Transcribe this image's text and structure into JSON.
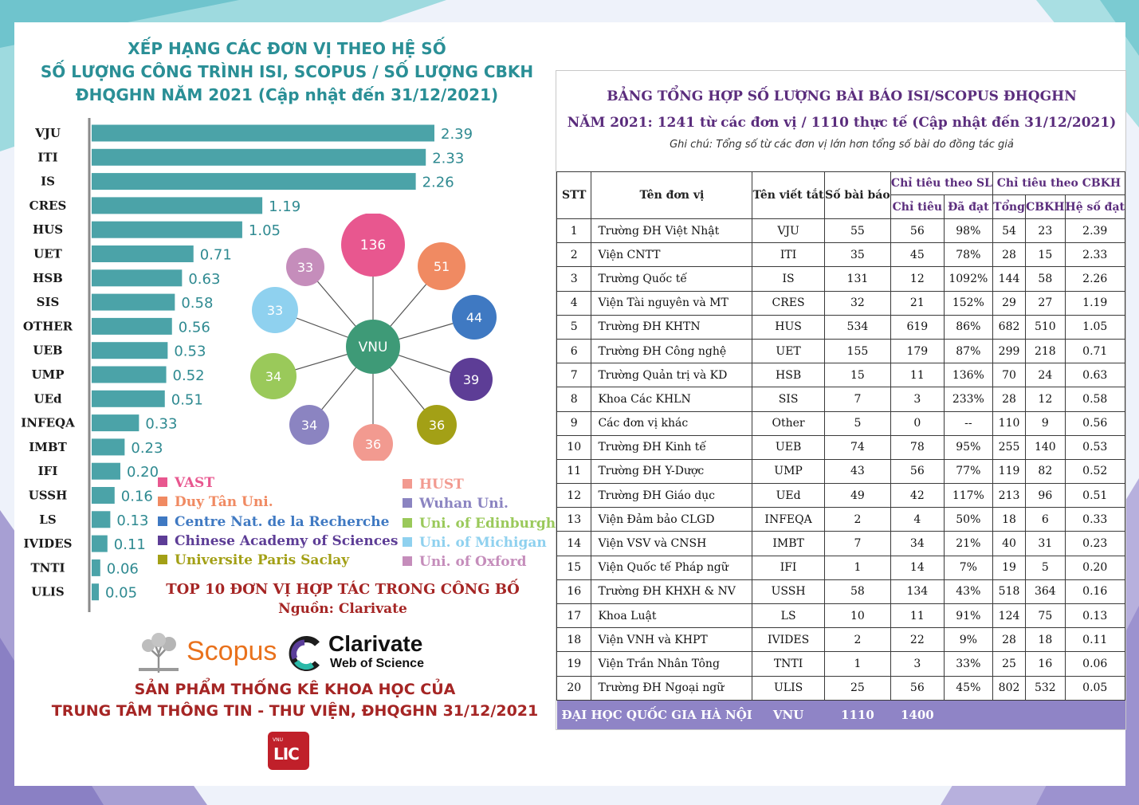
{
  "chart_title": [
    "XẾP HẠNG CÁC ĐƠN VỊ THEO HỆ SỐ",
    "SỐ LƯỢNG CÔNG TRÌNH ISI, SCOPUS / SỐ LƯỢNG CBKH",
    "ĐHQGHN NĂM 2021 (Cập nhật đến 31/12/2021)"
  ],
  "chart_data": [
    {
      "type": "bar",
      "orientation": "horizontal",
      "categories": [
        "VJU",
        "ITI",
        "IS",
        "CRES",
        "HUS",
        "UET",
        "HSB",
        "SIS",
        "OTHER",
        "UEB",
        "UMP",
        "UEd",
        "INFEQA",
        "IMBT",
        "IFI",
        "USSH",
        "LS",
        "IVIDES",
        "TNTI",
        "ULIS"
      ],
      "values": [
        2.39,
        2.33,
        2.26,
        1.19,
        1.05,
        0.71,
        0.63,
        0.58,
        0.56,
        0.53,
        0.52,
        0.51,
        0.33,
        0.23,
        0.2,
        0.16,
        0.13,
        0.11,
        0.06,
        0.05
      ],
      "value_labels": [
        "2.39",
        "2.33",
        "2.26",
        "1.19",
        "1.05",
        "0.71",
        "0.63",
        "0.58",
        "0.56",
        "0.53",
        "0.52",
        "0.51",
        "0.33",
        "0.23",
        "0.20",
        "0.16",
        "0.13",
        "0.11",
        "0.06",
        "0.05"
      ],
      "xlim": [
        0,
        2.4
      ],
      "grid": false,
      "bar_color": "#4ba3a8"
    },
    {
      "type": "bubble-network",
      "center": "VNU",
      "center_color": "#3e9a77",
      "nodes": [
        {
          "partner": "VAST",
          "value": 136,
          "color": "#e8578f"
        },
        {
          "partner": "Duy Tân Uni.",
          "value": 51,
          "color": "#f08a62"
        },
        {
          "partner": "Centre Nat. de la Recherche",
          "value": 44,
          "color": "#3f79c2"
        },
        {
          "partner": "Chinese Academy of Sciences",
          "value": 39,
          "color": "#5d3d96"
        },
        {
          "partner": "Universite Paris Saclay",
          "value": 36,
          "color": "#a3a016"
        },
        {
          "partner": "HUST",
          "value": 36,
          "color": "#f29a90"
        },
        {
          "partner": "Wuhan Uni.",
          "value": 34,
          "color": "#8b84c1"
        },
        {
          "partner": "Uni. of Edinburgh",
          "value": 34,
          "color": "#9ac95a"
        },
        {
          "partner": "Uni. of Michigan",
          "value": 33,
          "color": "#8fd1ef"
        },
        {
          "partner": "Uni. of Oxford",
          "value": 33,
          "color": "#c58dbb"
        }
      ]
    }
  ],
  "legend": {
    "left": [
      {
        "label": "VAST",
        "color": "#e8578f"
      },
      {
        "label": "Duy Tân Uni.",
        "color": "#f08a62"
      },
      {
        "label": "Centre Nat. de la Recherche",
        "color": "#3f79c2"
      },
      {
        "label": "Chinese Academy of Sciences",
        "color": "#5d3d96"
      },
      {
        "label": "Universite Paris Saclay",
        "color": "#a3a016"
      }
    ],
    "right": [
      {
        "label": "HUST",
        "color": "#f29a90"
      },
      {
        "label": "Wuhan Uni.",
        "color": "#8b84c1"
      },
      {
        "label": "Uni. of Edinburgh",
        "color": "#9ac95a"
      },
      {
        "label": "Uni. of Michigan",
        "color": "#8fd1ef"
      },
      {
        "label": "Uni. of Oxford",
        "color": "#c58dbb"
      }
    ]
  },
  "top10": {
    "title": "TOP 10 ĐƠN VỊ HỢP TÁC TRONG CÔNG BỐ",
    "source": "Nguồn: Clarivate"
  },
  "logos": {
    "scopus": "Scopus",
    "clarivate": "Clarivate",
    "wos": "Web of Science",
    "lic": "LIC",
    "vnu_small": "VNU"
  },
  "footer": [
    "SẢN PHẨM THỐNG KÊ KHOA HỌC CỦA",
    "TRUNG TÂM THÔNG TIN - THƯ VIỆN, ĐHQGHN 31/12/2021"
  ],
  "table": {
    "title1": "BẢNG TỔNG HỢP SỐ LƯỢNG BÀI BÁO ISI/SCOPUS ĐHQGHN",
    "title2": "NĂM 2021: 1241 từ các đơn vị / 1110 thực tế (Cập nhật đến 31/12/2021)",
    "note": "Ghi chú: Tổng số từ các đơn vị lớn hơn tổng số bài do đồng tác giả",
    "headers": {
      "stt": "STT",
      "name": "Tên đơn vị",
      "abbr": "Tên viết tắt",
      "papers": "Số bài báo",
      "sl_group": "Chỉ tiêu theo SL",
      "sl_target": "Chỉ tiêu",
      "sl_achieved": "Đã đạt",
      "cbkh_group": "Chỉ tiêu theo CBKH",
      "total": "Tổng",
      "cbkh": "CBKH",
      "ratio": "Hệ số đạt"
    },
    "rows": [
      [
        "1",
        "Trường ĐH Việt Nhật",
        "VJU",
        "55",
        "56",
        "98%",
        "54",
        "23",
        "2.39"
      ],
      [
        "2",
        "Viện CNTT",
        "ITI",
        "35",
        "45",
        "78%",
        "28",
        "15",
        "2.33"
      ],
      [
        "3",
        "Trường Quốc tế",
        "IS",
        "131",
        "12",
        "1092%",
        "144",
        "58",
        "2.26"
      ],
      [
        "4",
        "Viện Tài nguyên và MT",
        "CRES",
        "32",
        "21",
        "152%",
        "29",
        "27",
        "1.19"
      ],
      [
        "5",
        "Trường ĐH KHTN",
        "HUS",
        "534",
        "619",
        "86%",
        "682",
        "510",
        "1.05"
      ],
      [
        "6",
        "Trường ĐH Công nghệ",
        "UET",
        "155",
        "179",
        "87%",
        "299",
        "218",
        "0.71"
      ],
      [
        "7",
        "Trường Quản trị và KD",
        "HSB",
        "15",
        "11",
        "136%",
        "70",
        "24",
        "0.63"
      ],
      [
        "8",
        "Khoa Các KHLN",
        "SIS",
        "7",
        "3",
        "233%",
        "28",
        "12",
        "0.58"
      ],
      [
        "9",
        "Các đơn vị khác",
        "Other",
        "5",
        "0",
        "--",
        "110",
        "9",
        "0.56"
      ],
      [
        "10",
        "Trường ĐH Kinh tế",
        "UEB",
        "74",
        "78",
        "95%",
        "255",
        "140",
        "0.53"
      ],
      [
        "11",
        "Trường ĐH Y-Dược",
        "UMP",
        "43",
        "56",
        "77%",
        "119",
        "82",
        "0.52"
      ],
      [
        "12",
        "Trường ĐH Giáo dục",
        "UEd",
        "49",
        "42",
        "117%",
        "213",
        "96",
        "0.51"
      ],
      [
        "13",
        "Viện Đảm bảo CLGD",
        "INFEQA",
        "2",
        "4",
        "50%",
        "18",
        "6",
        "0.33"
      ],
      [
        "14",
        "Viện VSV và CNSH",
        "IMBT",
        "7",
        "34",
        "21%",
        "40",
        "31",
        "0.23"
      ],
      [
        "15",
        "Viện Quốc tế Pháp ngữ",
        "IFI",
        "1",
        "14",
        "7%",
        "19",
        "5",
        "0.20"
      ],
      [
        "16",
        "Trường ĐH KHXH & NV",
        "USSH",
        "58",
        "134",
        "43%",
        "518",
        "364",
        "0.16"
      ],
      [
        "17",
        "Khoa Luật",
        "LS",
        "10",
        "11",
        "91%",
        "124",
        "75",
        "0.13"
      ],
      [
        "18",
        "Viện VNH và KHPT",
        "IVIDES",
        "2",
        "22",
        "9%",
        "28",
        "18",
        "0.11"
      ],
      [
        "19",
        "Viện Trần Nhân Tông",
        "TNTI",
        "1",
        "3",
        "33%",
        "25",
        "16",
        "0.06"
      ],
      [
        "20",
        "Trường ĐH Ngoại ngữ",
        "ULIS",
        "25",
        "56",
        "45%",
        "802",
        "532",
        "0.05"
      ]
    ],
    "footer": {
      "name": "ĐẠI HỌC QUỐC GIA HÀ NỘI",
      "abbr": "VNU",
      "papers": "1110",
      "target": "1400"
    }
  }
}
